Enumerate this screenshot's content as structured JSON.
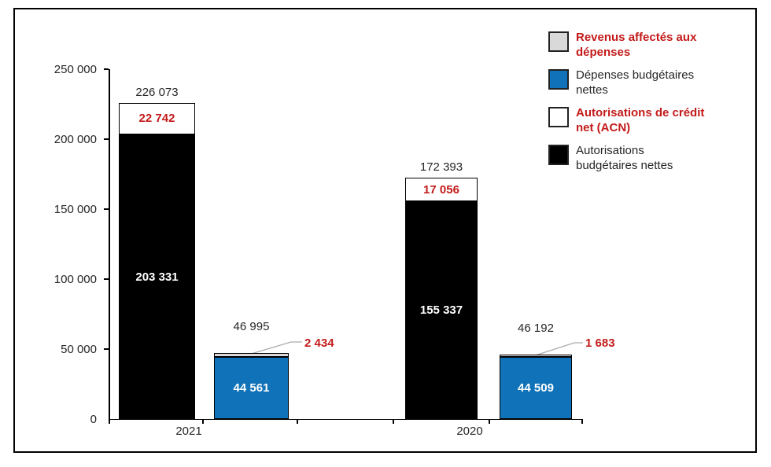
{
  "chart_data": {
    "type": "bar",
    "stacked": true,
    "title": "",
    "grid": false,
    "legend_position": "top-right",
    "y_axis": {
      "min": 0,
      "max": 250000,
      "tick_step": 50000,
      "tick_labels": [
        "0",
        "50 000",
        "100 000",
        "150 000",
        "200 000",
        "250 000"
      ]
    },
    "categories": [
      "2021",
      "2020"
    ],
    "legend": [
      {
        "label": "Revenus affectés aux\ndépenses",
        "swatch": "#D9D9D9",
        "text_color": "#C31B1B",
        "bold": true
      },
      {
        "label": "Dépenses budgétaires\nnettes",
        "swatch": "#1072B8",
        "text_color": "#262626",
        "bold": false
      },
      {
        "label": "Autorisations de crédit\nnet (ACN)",
        "swatch": "#FFFFFF",
        "text_color": "#C31B1B",
        "bold": true
      },
      {
        "label": "Autorisations\nbudgétaires nettes",
        "swatch": "#000000",
        "text_color": "#262626",
        "bold": false
      }
    ],
    "groups": [
      {
        "category": "2021",
        "authorizations_bar": {
          "total": 226073,
          "total_label": "226 073",
          "acn": 22742,
          "acn_label": "22 742",
          "net_budgetary_authorizations": 203331,
          "net_budgetary_authorizations_label": "203 331"
        },
        "expenses_bar": {
          "total": 46995,
          "total_label": "46 995",
          "affected_revenues": 2434,
          "affected_revenues_label": "2 434",
          "net_budgetary_expenses": 44561,
          "net_budgetary_expenses_label": "44 561"
        }
      },
      {
        "category": "2020",
        "authorizations_bar": {
          "total": 172393,
          "total_label": "172 393",
          "acn": 17056,
          "acn_label": "17 056",
          "net_budgetary_authorizations": 155337,
          "net_budgetary_authorizations_label": "155 337"
        },
        "expenses_bar": {
          "total": 46192,
          "total_label": "46 192",
          "affected_revenues": 1683,
          "affected_revenues_label": "1 683",
          "net_budgetary_expenses": 44509,
          "net_budgetary_expenses_label": "44 509"
        }
      }
    ],
    "colors": {
      "bar_black": "#000000",
      "bar_blue": "#1072B8",
      "acn_white": "#FFFFFF",
      "revenues_gray": "#D9D9D9",
      "label_red": "#C31B1B",
      "text": "#262626",
      "leader_gray": "#ABABAB",
      "axis": "#000000"
    }
  }
}
